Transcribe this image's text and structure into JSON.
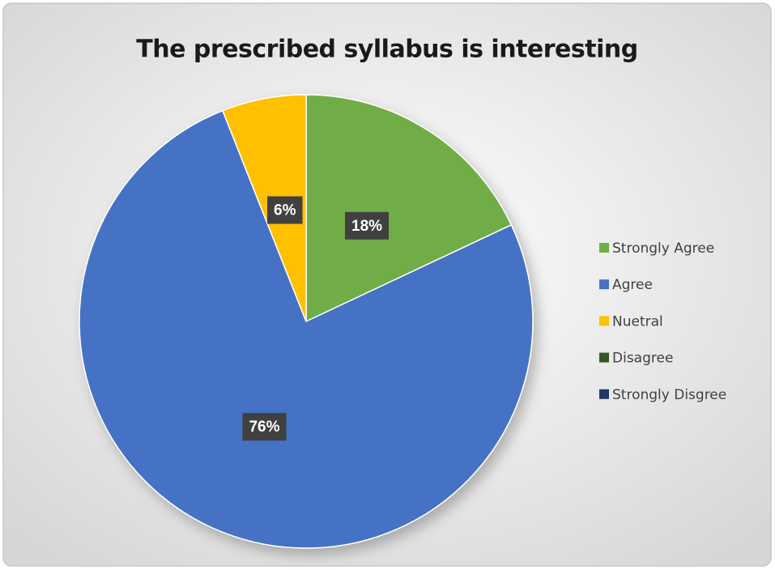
{
  "chart_data": {
    "type": "pie",
    "title": "The prescribed syllabus is interesting",
    "categories": [
      "Strongly Agree",
      "Agree",
      "Nuetral",
      "Disagree",
      "Strongly Disgree"
    ],
    "values": [
      18,
      76,
      6,
      0,
      0
    ],
    "value_labels": [
      "18%",
      "76%",
      "6%",
      null,
      null
    ],
    "colors": [
      "#70ad47",
      "#4472c4",
      "#ffc000",
      "#375623",
      "#203864"
    ],
    "legend": "right"
  }
}
